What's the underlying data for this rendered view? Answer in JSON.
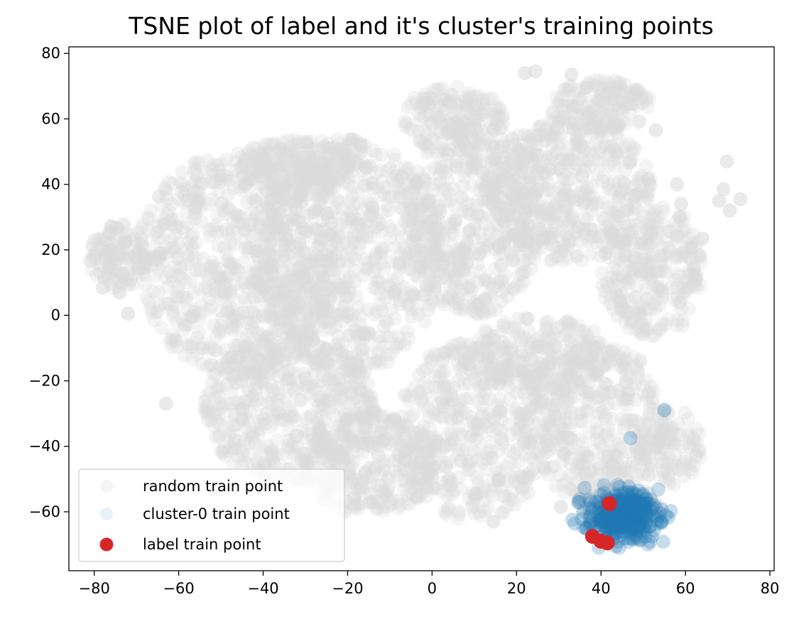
{
  "chart_data": {
    "type": "scatter",
    "title": "TSNE plot of label and it's cluster's training points",
    "xlabel": "",
    "ylabel": "",
    "xlim": [
      -86,
      81
    ],
    "ylim": [
      -78,
      82
    ],
    "xticks": [
      -80,
      -60,
      -40,
      -20,
      0,
      20,
      40,
      60,
      80
    ],
    "yticks": [
      80,
      60,
      40,
      20,
      0,
      -20,
      -40,
      -60
    ],
    "xtick_labels": [
      "−80",
      "−60",
      "−40",
      "−20",
      "0",
      "20",
      "40",
      "60",
      "80"
    ],
    "ytick_labels": [
      "80",
      "60",
      "40",
      "20",
      "0",
      "−20",
      "−40",
      "−60"
    ],
    "grid": false,
    "legend_position": "lower-left",
    "colors": {
      "random": "#d9d9d9",
      "cluster": "#1f77b4",
      "label": "#d62728"
    },
    "series": [
      {
        "name": "random train point",
        "color": "#d9d9d9",
        "alpha": 0.3,
        "regions": [
          {
            "cx": -46,
            "cy": 16,
            "rx": 24,
            "ry": 34,
            "n": 700
          },
          {
            "cx": -20,
            "cy": 18,
            "rx": 22,
            "ry": 36,
            "n": 650
          },
          {
            "cx": -34,
            "cy": -28,
            "rx": 20,
            "ry": 24,
            "n": 450
          },
          {
            "cx": -15,
            "cy": -45,
            "rx": 16,
            "ry": 16,
            "n": 300
          },
          {
            "cx": -74,
            "cy": 18,
            "rx": 7,
            "ry": 10,
            "n": 120
          },
          {
            "cx": -32,
            "cy": 46,
            "rx": 14,
            "ry": 8,
            "n": 180
          },
          {
            "cx": 10,
            "cy": 30,
            "rx": 16,
            "ry": 30,
            "n": 450
          },
          {
            "cx": 5,
            "cy": 60,
            "rx": 12,
            "ry": 10,
            "n": 160
          },
          {
            "cx": 32,
            "cy": 38,
            "rx": 20,
            "ry": 22,
            "n": 450
          },
          {
            "cx": 40,
            "cy": 64,
            "rx": 12,
            "ry": 8,
            "n": 150
          },
          {
            "cx": 52,
            "cy": 14,
            "rx": 12,
            "ry": 22,
            "n": 280
          },
          {
            "cx": 10,
            "cy": -35,
            "rx": 18,
            "ry": 28,
            "n": 400
          },
          {
            "cx": 38,
            "cy": -32,
            "rx": 18,
            "ry": 24,
            "n": 380
          },
          {
            "cx": 56,
            "cy": -40,
            "rx": 8,
            "ry": 12,
            "n": 100
          },
          {
            "cx": 25,
            "cy": -12,
            "rx": 18,
            "ry": 12,
            "n": 200
          },
          {
            "cx": 44,
            "cy": -58,
            "rx": 10,
            "ry": 6,
            "n": 120
          }
        ],
        "outliers": [
          {
            "x": 69.8,
            "y": 47
          },
          {
            "x": 69,
            "y": 38.5
          },
          {
            "x": 73,
            "y": 35.5
          },
          {
            "x": 70.5,
            "y": 32
          },
          {
            "x": 68,
            "y": 35
          },
          {
            "x": 64,
            "y": 23.5
          },
          {
            "x": 53,
            "y": 56.5
          },
          {
            "x": 58,
            "y": 40
          },
          {
            "x": 59,
            "y": 34
          },
          {
            "x": 62,
            "y": 14.5
          },
          {
            "x": -78,
            "y": 8.5
          },
          {
            "x": -74,
            "y": 7
          },
          {
            "x": -72,
            "y": 0.5
          },
          {
            "x": -63,
            "y": -27
          },
          {
            "x": 14.5,
            "y": -63
          },
          {
            "x": 30.5,
            "y": -58.5
          },
          {
            "x": 24.5,
            "y": 74.5
          },
          {
            "x": 33,
            "y": 73.5
          },
          {
            "x": 22,
            "y": 74
          }
        ]
      },
      {
        "name": "cluster-0 train point",
        "color": "#1f77b4",
        "alpha": 0.25,
        "center": {
          "x": 45,
          "y": -61
        },
        "spread": {
          "x": 4.2,
          "y": 3.6
        },
        "n": 340,
        "outliers": [
          {
            "x": 55,
            "y": -29
          },
          {
            "x": 47,
            "y": -37.5
          },
          {
            "x": 36.5,
            "y": -65
          },
          {
            "x": 43.5,
            "y": -70.5
          },
          {
            "x": 52,
            "y": -67.5
          },
          {
            "x": 48.5,
            "y": -68
          }
        ]
      },
      {
        "name": "label train point",
        "color": "#d62728",
        "alpha": 1,
        "points": [
          {
            "x": 42,
            "y": -57.5
          },
          {
            "x": 38,
            "y": -67.5
          },
          {
            "x": 40,
            "y": -69
          },
          {
            "x": 41.5,
            "y": -69.5
          }
        ]
      }
    ]
  }
}
